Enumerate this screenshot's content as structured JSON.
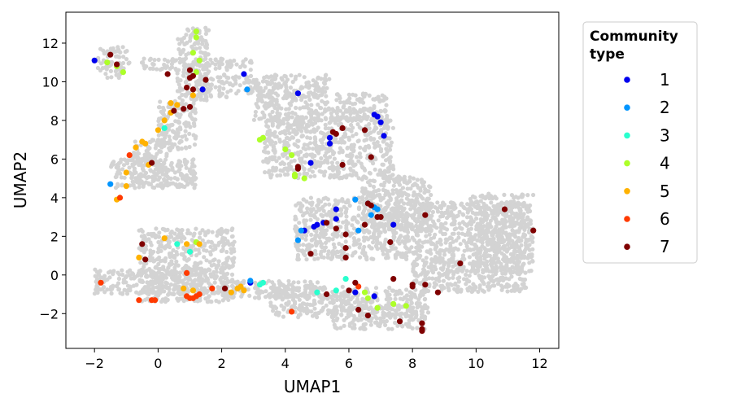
{
  "chart_data": {
    "type": "scatter",
    "title": "",
    "xlabel": "UMAP1",
    "ylabel": "UMAP2",
    "xlim": [
      -2.9,
      12.6
    ],
    "ylim": [
      -3.8,
      13.6
    ],
    "xticks": [
      "−2",
      "0",
      "2",
      "4",
      "6",
      "8",
      "10",
      "12"
    ],
    "xtick_values": [
      -2,
      0,
      2,
      4,
      6,
      8,
      10,
      12
    ],
    "yticks": [
      "−2",
      "0",
      "2",
      "4",
      "6",
      "8",
      "10",
      "12"
    ],
    "ytick_values": [
      -2,
      0,
      2,
      4,
      6,
      8,
      10,
      12
    ],
    "grid": false,
    "legend": {
      "title_line1": "Community",
      "title_line2": "type",
      "placement": "outside-right-top"
    },
    "background_color": "#d3d3d3",
    "background_regions": [
      {
        "x": [
          -1.9,
          -0.9
        ],
        "y": [
          10.2,
          11.8
        ]
      },
      {
        "x": [
          -0.6,
          3.0
        ],
        "y": [
          10.6,
          11.2
        ]
      },
      {
        "x": [
          0.6,
          1.6
        ],
        "y": [
          9.0,
          12.8
        ]
      },
      {
        "x": [
          1.2,
          5.4
        ],
        "y": [
          9.2,
          10.4
        ]
      },
      {
        "x": [
          3.0,
          7.2
        ],
        "y": [
          8.0,
          9.4
        ]
      },
      {
        "x": [
          0.0,
          1.2
        ],
        "y": [
          6.5,
          9.0
        ]
      },
      {
        "x": [
          -0.8,
          0.4
        ],
        "y": [
          4.5,
          7.0
        ]
      },
      {
        "x": [
          -1.5,
          1.2
        ],
        "y": [
          4.5,
          6.0
        ]
      },
      {
        "x": [
          3.3,
          7.4
        ],
        "y": [
          5.0,
          8.2
        ]
      },
      {
        "x": [
          4.3,
          8.0
        ],
        "y": [
          0.8,
          4.0
        ]
      },
      {
        "x": [
          6.4,
          8.6
        ],
        "y": [
          2.2,
          5.1
        ]
      },
      {
        "x": [
          8.0,
          11.6
        ],
        "y": [
          -0.9,
          3.8
        ]
      },
      {
        "x": [
          9.8,
          11.8
        ],
        "y": [
          0.1,
          4.2
        ]
      },
      {
        "x": [
          -0.6,
          2.4
        ],
        "y": [
          -1.4,
          2.4
        ]
      },
      {
        "x": [
          -2.0,
          2.2
        ],
        "y": [
          -1.0,
          0.3
        ]
      },
      {
        "x": [
          2.0,
          5.3
        ],
        "y": [
          -1.2,
          -0.3
        ]
      },
      {
        "x": [
          3.5,
          8.5
        ],
        "y": [
          -2.2,
          -0.6
        ]
      },
      {
        "x": [
          5.5,
          8.4
        ],
        "y": [
          -2.8,
          -1.6
        ]
      }
    ],
    "series": [
      {
        "name": "1",
        "color": "#0000ee",
        "points": [
          [
            -2.0,
            11.1
          ],
          [
            1.4,
            9.6
          ],
          [
            2.7,
            10.4
          ],
          [
            4.4,
            9.4
          ],
          [
            5.4,
            7.1
          ],
          [
            5.4,
            6.8
          ],
          [
            6.8,
            8.3
          ],
          [
            6.9,
            8.2
          ],
          [
            7.0,
            7.9
          ],
          [
            7.1,
            7.2
          ],
          [
            4.8,
            5.8
          ],
          [
            5.6,
            3.4
          ],
          [
            5.6,
            2.9
          ],
          [
            5.2,
            2.7
          ],
          [
            4.9,
            2.5
          ],
          [
            5.0,
            2.6
          ],
          [
            4.6,
            2.3
          ],
          [
            7.4,
            2.6
          ],
          [
            2.9,
            -0.4
          ],
          [
            6.2,
            -0.9
          ],
          [
            6.8,
            -1.1
          ]
        ]
      },
      {
        "name": "2",
        "color": "#0095ff",
        "points": [
          [
            -1.5,
            4.7
          ],
          [
            2.8,
            9.6
          ],
          [
            6.2,
            3.9
          ],
          [
            6.6,
            3.7
          ],
          [
            6.8,
            3.5
          ],
          [
            6.9,
            3.4
          ],
          [
            6.7,
            3.1
          ],
          [
            6.3,
            2.3
          ],
          [
            4.5,
            2.3
          ],
          [
            4.4,
            1.8
          ],
          [
            2.9,
            -0.3
          ]
        ]
      },
      {
        "name": "3",
        "color": "#29ffce",
        "points": [
          [
            0.2,
            7.6
          ],
          [
            0.6,
            1.6
          ],
          [
            1.0,
            1.2
          ],
          [
            3.2,
            -0.5
          ],
          [
            3.3,
            -0.4
          ],
          [
            5.0,
            -0.9
          ],
          [
            5.6,
            -0.8
          ],
          [
            5.9,
            -0.2
          ]
        ]
      },
      {
        "name": "4",
        "color": "#adff29",
        "points": [
          [
            -1.6,
            11.0
          ],
          [
            -1.3,
            10.8
          ],
          [
            -1.1,
            10.5
          ],
          [
            1.1,
            11.5
          ],
          [
            1.2,
            12.3
          ],
          [
            1.2,
            12.6
          ],
          [
            1.3,
            11.1
          ],
          [
            1.2,
            10.5
          ],
          [
            3.3,
            7.1
          ],
          [
            3.2,
            7.0
          ],
          [
            4.0,
            6.5
          ],
          [
            4.2,
            6.2
          ],
          [
            4.3,
            5.2
          ],
          [
            4.3,
            5.1
          ],
          [
            4.6,
            5.0
          ],
          [
            1.2,
            1.7
          ],
          [
            6.5,
            -0.9
          ],
          [
            6.6,
            -1.2
          ],
          [
            6.9,
            -1.7
          ],
          [
            7.4,
            -1.5
          ],
          [
            7.8,
            -1.6
          ]
        ]
      },
      {
        "name": "5",
        "color": "#ffb200",
        "points": [
          [
            0.4,
            8.9
          ],
          [
            0.6,
            8.8
          ],
          [
            0.4,
            8.4
          ],
          [
            0.2,
            8.0
          ],
          [
            0.0,
            7.5
          ],
          [
            1.1,
            9.3
          ],
          [
            -0.5,
            6.9
          ],
          [
            -0.4,
            6.8
          ],
          [
            -0.7,
            6.6
          ],
          [
            -0.3,
            5.7
          ],
          [
            -1.0,
            5.3
          ],
          [
            -1.0,
            4.6
          ],
          [
            -1.3,
            3.9
          ],
          [
            0.2,
            1.9
          ],
          [
            -0.6,
            0.9
          ],
          [
            0.9,
            1.6
          ],
          [
            1.3,
            1.6
          ],
          [
            0.8,
            -0.7
          ],
          [
            1.1,
            -0.8
          ],
          [
            2.3,
            -0.9
          ],
          [
            2.5,
            -0.7
          ],
          [
            2.6,
            -0.6
          ],
          [
            2.7,
            -0.8
          ]
        ]
      },
      {
        "name": "6",
        "color": "#ff3a00",
        "points": [
          [
            -0.9,
            6.2
          ],
          [
            -1.2,
            4.0
          ],
          [
            -1.8,
            -0.4
          ],
          [
            -0.6,
            -1.3
          ],
          [
            -0.2,
            -1.3
          ],
          [
            -0.1,
            -1.3
          ],
          [
            0.9,
            -1.1
          ],
          [
            1.0,
            -1.2
          ],
          [
            1.1,
            -1.2
          ],
          [
            1.2,
            -1.1
          ],
          [
            1.3,
            -1.0
          ],
          [
            1.7,
            -0.7
          ],
          [
            0.9,
            0.1
          ],
          [
            4.2,
            -1.9
          ],
          [
            6.3,
            -0.6
          ]
        ]
      },
      {
        "name": "7",
        "color": "#7f0000",
        "points": [
          [
            -1.5,
            11.4
          ],
          [
            -1.3,
            10.9
          ],
          [
            0.3,
            10.4
          ],
          [
            1.0,
            10.6
          ],
          [
            1.0,
            10.2
          ],
          [
            1.5,
            10.1
          ],
          [
            1.1,
            10.3
          ],
          [
            0.9,
            9.7
          ],
          [
            1.1,
            9.6
          ],
          [
            0.5,
            8.5
          ],
          [
            0.8,
            8.6
          ],
          [
            1.0,
            8.7
          ],
          [
            5.5,
            7.4
          ],
          [
            5.6,
            7.3
          ],
          [
            5.8,
            7.6
          ],
          [
            6.5,
            7.5
          ],
          [
            6.7,
            6.1
          ],
          [
            -0.2,
            5.8
          ],
          [
            4.4,
            5.6
          ],
          [
            5.8,
            5.7
          ],
          [
            4.4,
            5.5
          ],
          [
            6.6,
            3.7
          ],
          [
            6.7,
            3.6
          ],
          [
            6.5,
            2.6
          ],
          [
            6.9,
            3.0
          ],
          [
            7.0,
            3.0
          ],
          [
            7.3,
            1.7
          ],
          [
            8.4,
            3.1
          ],
          [
            10.9,
            3.4
          ],
          [
            11.8,
            2.3
          ],
          [
            5.3,
            2.7
          ],
          [
            5.9,
            2.1
          ],
          [
            5.6,
            2.4
          ],
          [
            5.9,
            1.4
          ],
          [
            5.9,
            0.9
          ],
          [
            4.8,
            1.1
          ],
          [
            -0.5,
            1.6
          ],
          [
            -0.4,
            0.8
          ],
          [
            9.5,
            0.6
          ],
          [
            2.1,
            -0.7
          ],
          [
            5.3,
            -1.0
          ],
          [
            6.0,
            -0.8
          ],
          [
            6.2,
            -0.4
          ],
          [
            7.4,
            -0.2
          ],
          [
            8.0,
            -0.5
          ],
          [
            8.0,
            -0.6
          ],
          [
            8.4,
            -0.5
          ],
          [
            8.8,
            -0.9
          ],
          [
            6.3,
            -1.8
          ],
          [
            6.6,
            -2.1
          ],
          [
            7.6,
            -2.4
          ],
          [
            8.3,
            -2.5
          ],
          [
            8.3,
            -2.8
          ],
          [
            8.3,
            -2.9
          ]
        ]
      }
    ]
  }
}
